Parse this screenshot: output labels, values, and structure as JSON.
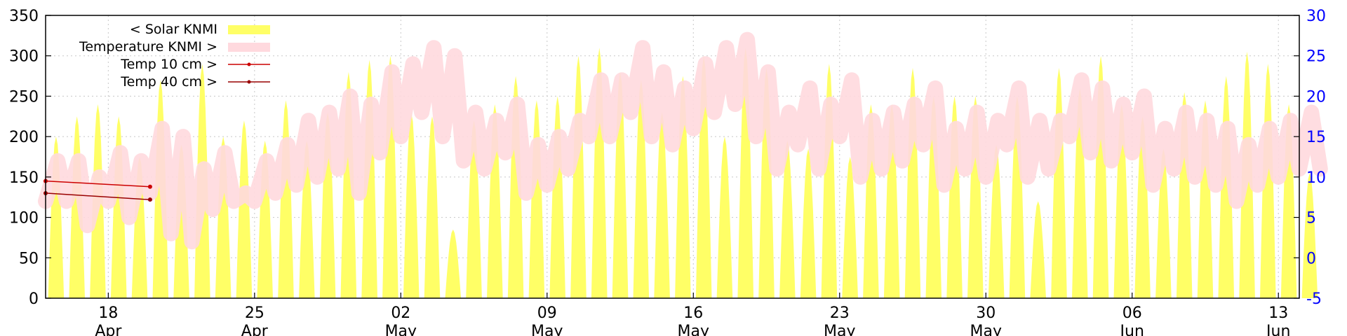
{
  "chart_data": {
    "type": "area",
    "title": "",
    "xlabel": "",
    "ylabel_left": "",
    "ylabel_right": "",
    "x_range": [
      "2024-04-15",
      "2024-06-14"
    ],
    "x_ticks": [
      {
        "date": "2024-04-18",
        "day": "18",
        "month": "Apr"
      },
      {
        "date": "2024-04-25",
        "day": "25",
        "month": "Apr"
      },
      {
        "date": "2024-05-02",
        "day": "02",
        "month": "May"
      },
      {
        "date": "2024-05-09",
        "day": "09",
        "month": "May"
      },
      {
        "date": "2024-05-16",
        "day": "16",
        "month": "May"
      },
      {
        "date": "2024-05-23",
        "day": "23",
        "month": "May"
      },
      {
        "date": "2024-05-30",
        "day": "30",
        "month": "May"
      },
      {
        "date": "2024-06-06",
        "day": "06",
        "month": "Jun"
      },
      {
        "date": "2024-06-13",
        "day": "13",
        "month": "Jun"
      }
    ],
    "y_left": {
      "range": [
        0,
        350
      ],
      "ticks": [
        "0",
        "50",
        "100",
        "150",
        "200",
        "250",
        "300",
        "350"
      ]
    },
    "y_right": {
      "range": [
        -5,
        30
      ],
      "ticks": [
        "-5",
        "0",
        "5",
        "10",
        "15",
        "20",
        "25",
        "30"
      ],
      "color": "#0000ff"
    },
    "grid": true,
    "legend_position": "top-left",
    "legend": [
      {
        "label": "< Solar KNMI",
        "color": "#ffff66",
        "style": "area"
      },
      {
        "label": "Temperature KNMI >",
        "color": "#ffd9de",
        "style": "band"
      },
      {
        "label": "Temp 10 cm >",
        "color": "#cc0000",
        "style": "line-point"
      },
      {
        "label": "Temp 40 cm >",
        "color": "#990000",
        "style": "line-point"
      }
    ],
    "daily_solar_peak": [
      200,
      225,
      240,
      225,
      175,
      270,
      190,
      290,
      200,
      220,
      195,
      245,
      195,
      230,
      280,
      295,
      300,
      230,
      225,
      85,
      220,
      240,
      275,
      245,
      250,
      300,
      310,
      280,
      270,
      230,
      275,
      300,
      200,
      310,
      285,
      195,
      185,
      290,
      175,
      240,
      240,
      285,
      250,
      250,
      250,
      190,
      250,
      120,
      285,
      260,
      300,
      240,
      225,
      185,
      255,
      245,
      275,
      305,
      290,
      240,
      155
    ],
    "daily_temp_max": [
      12,
      12,
      10,
      13,
      12,
      16,
      15,
      11,
      13,
      8,
      12,
      14,
      17,
      18,
      20,
      19,
      23,
      24,
      26,
      25,
      18,
      17,
      19,
      14,
      15,
      17,
      22,
      22,
      26,
      23,
      21,
      24,
      26,
      27,
      23,
      18,
      21,
      19,
      22,
      17,
      18,
      19,
      21,
      16,
      18,
      17,
      21,
      17,
      17,
      22,
      21,
      19,
      20,
      16,
      18,
      17,
      16,
      14,
      16,
      17,
      18
    ],
    "daily_temp_min": [
      7,
      7,
      4,
      7,
      5,
      8,
      3,
      2,
      6,
      7,
      7,
      8,
      9,
      10,
      11,
      8,
      13,
      15,
      18,
      15,
      12,
      11,
      13,
      8,
      9,
      11,
      15,
      15,
      18,
      15,
      14,
      16,
      18,
      19,
      15,
      11,
      14,
      11,
      15,
      10,
      11,
      12,
      14,
      9,
      11,
      10,
      14,
      10,
      11,
      15,
      13,
      12,
      13,
      9,
      11,
      10,
      9,
      7,
      9,
      10,
      11
    ],
    "temp_10cm": {
      "x": [
        "2024-04-15",
        "2024-04-20"
      ],
      "y": [
        9.5,
        8.8
      ],
      "name": "Temp 10 cm >"
    },
    "temp_40cm": {
      "x": [
        "2024-04-15",
        "2024-04-20"
      ],
      "y": [
        8.0,
        7.2
      ],
      "name": "Temp 40 cm >"
    }
  }
}
